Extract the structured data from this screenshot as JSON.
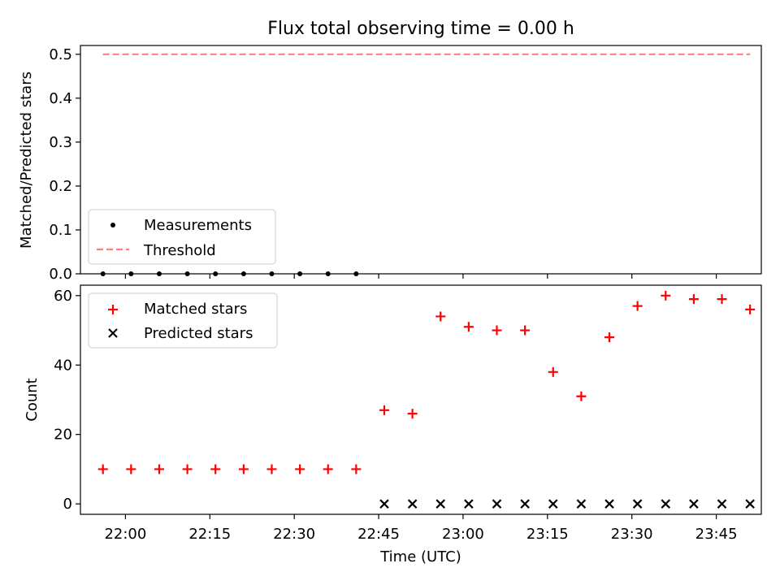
{
  "chart_data": [
    {
      "type": "scatter",
      "title": "Flux total observing time = 0.00 h",
      "xlabel": "",
      "ylabel": "Matched/Predicted stars",
      "ylim": [
        0,
        0.52
      ],
      "yticks": [
        "0.0",
        "0.1",
        "0.2",
        "0.3",
        "0.4",
        "0.5"
      ],
      "grid": false,
      "legend_position": "lower-left",
      "series": [
        {
          "name": "Measurements",
          "marker": "dot",
          "color": "#000000",
          "x": [
            "21:56",
            "22:01",
            "22:06",
            "22:11",
            "22:16",
            "22:21",
            "22:26",
            "22:31",
            "22:36",
            "22:41"
          ],
          "y": [
            0,
            0,
            0,
            0,
            0,
            0,
            0,
            0,
            0,
            0
          ]
        },
        {
          "name": "Threshold",
          "marker": "dashed-line",
          "color": "#ff7f7f",
          "x": [
            "21:56",
            "23:51"
          ],
          "y": [
            0.5,
            0.5
          ]
        }
      ]
    },
    {
      "type": "scatter",
      "title": "",
      "xlabel": "Time (UTC)",
      "ylabel": "Count",
      "ylim": [
        -3,
        63
      ],
      "yticks": [
        "0",
        "20",
        "40",
        "60"
      ],
      "xticks": [
        "22:00",
        "22:15",
        "22:30",
        "22:45",
        "23:00",
        "23:15",
        "23:30",
        "23:45"
      ],
      "xlim": [
        "21:52",
        "23:53"
      ],
      "grid": false,
      "legend_position": "upper-left",
      "series": [
        {
          "name": "Matched stars",
          "marker": "plus",
          "color": "#ff0000",
          "x": [
            "21:56",
            "22:01",
            "22:06",
            "22:11",
            "22:16",
            "22:21",
            "22:26",
            "22:31",
            "22:36",
            "22:41",
            "22:46",
            "22:51",
            "22:56",
            "23:01",
            "23:06",
            "23:11",
            "23:16",
            "23:21",
            "23:26",
            "23:31",
            "23:36",
            "23:41",
            "23:46",
            "23:51"
          ],
          "y": [
            10,
            10,
            10,
            10,
            10,
            10,
            10,
            10,
            10,
            10,
            27,
            26,
            54,
            51,
            50,
            50,
            38,
            31,
            48,
            57,
            60,
            59,
            59,
            56
          ]
        },
        {
          "name": "Predicted stars",
          "marker": "x",
          "color": "#000000",
          "x": [
            "22:46",
            "22:51",
            "22:56",
            "23:01",
            "23:06",
            "23:11",
            "23:16",
            "23:21",
            "23:26",
            "23:31",
            "23:36",
            "23:41",
            "23:46",
            "23:51"
          ],
          "y": [
            0,
            0,
            0,
            0,
            0,
            0,
            0,
            0,
            0,
            0,
            0,
            0,
            0,
            0
          ]
        }
      ]
    }
  ]
}
